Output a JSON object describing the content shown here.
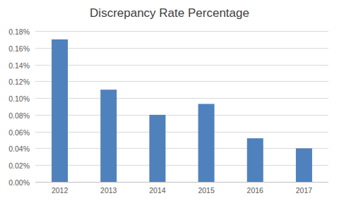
{
  "chart_data": {
    "type": "bar",
    "title": "Discrepancy Rate Percentage",
    "categories": [
      "2012",
      "2013",
      "2014",
      "2015",
      "2016",
      "2017"
    ],
    "values": [
      0.17,
      0.11,
      0.08,
      0.093,
      0.052,
      0.04
    ],
    "color": "#4f81bd",
    "ylim": [
      0,
      0.18
    ],
    "yticks": [
      {
        "value": 0,
        "label": "0.00%"
      },
      {
        "value": 0.02,
        "label": "0.02%"
      },
      {
        "value": 0.04,
        "label": "0.04%"
      },
      {
        "value": 0.06,
        "label": "0.06%"
      },
      {
        "value": 0.08,
        "label": "0.08%"
      },
      {
        "value": 0.1,
        "label": "0.10%"
      },
      {
        "value": 0.12,
        "label": "0.12%"
      },
      {
        "value": 0.14,
        "label": "0.14%"
      },
      {
        "value": 0.16,
        "label": "0.16%"
      },
      {
        "value": 0.18,
        "label": "0.18%"
      }
    ],
    "grid": true
  }
}
